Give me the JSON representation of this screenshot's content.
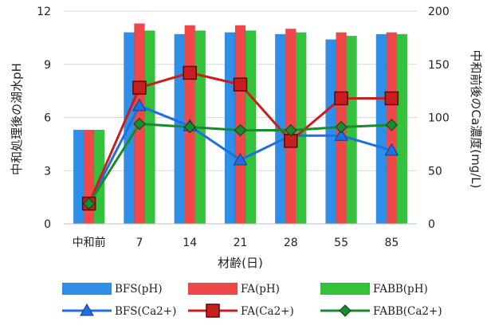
{
  "chart_data": {
    "type": "bar",
    "categories": [
      "中和前",
      "7",
      "14",
      "21",
      "28",
      "55",
      "85"
    ],
    "xlabel": "材齢(日)",
    "ylabel_left": "中和処理後の湖水pH",
    "ylabel_right": "中和前後のCa濃度(mg/L)",
    "ylim_left": [
      0,
      12
    ],
    "yticks_left": [
      "0",
      "3",
      "6",
      "9",
      "12"
    ],
    "ylim_right": [
      0,
      200
    ],
    "yticks_right": [
      "0",
      "50",
      "100",
      "150",
      "200"
    ],
    "grid": true,
    "legend_position": "bottom",
    "bar_series": [
      {
        "name": "BFS(pH)",
        "color": "#2f8fe8",
        "values": [
          5.3,
          10.8,
          10.7,
          10.8,
          10.7,
          10.4,
          10.7
        ]
      },
      {
        "name": "FA(pH)",
        "color": "#f04848",
        "values": [
          5.3,
          11.3,
          11.2,
          11.2,
          11.0,
          10.8,
          10.8
        ]
      },
      {
        "name": "FABB(pH)",
        "color": "#34c23c",
        "values": [
          5.3,
          10.9,
          10.9,
          10.9,
          10.8,
          10.6,
          10.7
        ]
      }
    ],
    "line_series": [
      {
        "name": "BFS(Ca2+)",
        "color": "#1f6fe0",
        "marker": "triangle",
        "values": [
          19,
          111,
          92,
          60,
          83,
          83,
          69
        ]
      },
      {
        "name": "FA(Ca2+)",
        "color": "#c81e1e",
        "marker": "square",
        "values": [
          19,
          128,
          142,
          131,
          78,
          118,
          118
        ]
      },
      {
        "name": "FABB(Ca2+)",
        "color": "#1a8a2e",
        "marker": "diamond",
        "values": [
          19,
          94,
          91,
          88,
          88,
          91,
          93
        ]
      }
    ]
  }
}
